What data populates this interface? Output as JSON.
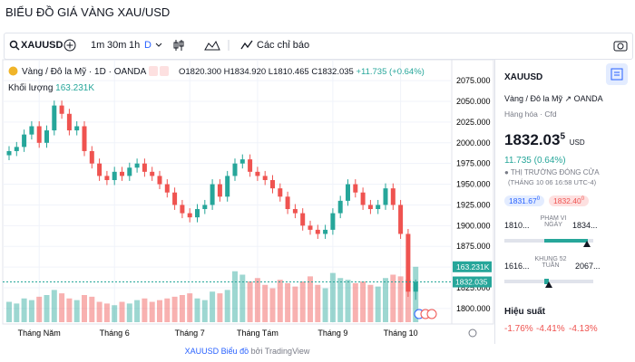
{
  "header": {
    "title": "BIỂU ĐỒ GIÁ VÀNG XAU/USD"
  },
  "toolbar": {
    "symbol": "XAUUSD",
    "intervals": [
      "1m",
      "30m",
      "1h",
      "D"
    ],
    "indicators": "Các chỉ báo"
  },
  "legend": {
    "name": "Vàng / Đô la Mỹ · 1D · OANDA",
    "ohlc": [
      "O1820.300",
      "H1834.920",
      "L1810.465",
      "C1832.035",
      "+11.735 (+0.64%)"
    ],
    "volume_title": "Khối lượng",
    "volume_value": "163.231K"
  },
  "chart_data": {
    "type": "candlestick",
    "categories": [
      null,
      null,
      null,
      null,
      "Tháng Năm",
      null,
      null,
      null,
      null,
      null,
      null,
      null,
      null,
      null,
      "Tháng 6",
      null,
      null,
      null,
      null,
      null,
      null,
      null,
      null,
      null,
      "Tháng 7",
      null,
      null,
      null,
      null,
      null,
      null,
      null,
      null,
      "Tháng Tám",
      null,
      null,
      null,
      null,
      null,
      null,
      null,
      null,
      null,
      "Tháng 9",
      null,
      null,
      null,
      null,
      null,
      null,
      null,
      null,
      "Tháng 10",
      null,
      null
    ],
    "open": [
      1985,
      1990,
      1995,
      2010,
      2020,
      2000,
      2015,
      2045,
      2035,
      2015,
      2020,
      1990,
      1975,
      1960,
      1955,
      1965,
      1960,
      1970,
      1975,
      1965,
      1960,
      1950,
      1940,
      1925,
      1915,
      1910,
      1920,
      1925,
      1950,
      1935,
      1960,
      1975,
      1980,
      1965,
      1960,
      1955,
      1945,
      1935,
      1920,
      1915,
      1900,
      1895,
      1890,
      1895,
      1915,
      1930,
      1950,
      1940,
      1925,
      1920,
      1925,
      1945,
      1925,
      1890,
      1820.3
    ],
    "high": [
      1996,
      2001,
      2016,
      2026,
      2026,
      2021,
      2051,
      2051,
      2041,
      2026,
      2026,
      1996,
      1981,
      1966,
      1971,
      1971,
      1976,
      1981,
      1981,
      1971,
      1966,
      1956,
      1946,
      1931,
      1921,
      1926,
      1931,
      1956,
      1956,
      1966,
      1981,
      1986,
      1986,
      1971,
      1966,
      1961,
      1951,
      1941,
      1926,
      1921,
      1906,
      1901,
      1901,
      1921,
      1936,
      1956,
      1956,
      1946,
      1931,
      1931,
      1951,
      1951,
      1931,
      1896,
      1834.92
    ],
    "low": [
      1979,
      1984,
      1989,
      2004,
      1994,
      1994,
      2009,
      2029,
      2009,
      2009,
      1984,
      1969,
      1954,
      1949,
      1949,
      1954,
      1954,
      1964,
      1959,
      1954,
      1944,
      1934,
      1919,
      1909,
      1904,
      1904,
      1914,
      1919,
      1929,
      1929,
      1954,
      1969,
      1959,
      1954,
      1949,
      1939,
      1929,
      1914,
      1909,
      1894,
      1889,
      1884,
      1884,
      1889,
      1909,
      1924,
      1934,
      1919,
      1914,
      1914,
      1919,
      1919,
      1884,
      1814,
      1810.465
    ],
    "close": [
      1990,
      1995,
      2010,
      2020,
      2000,
      2015,
      2045,
      2035,
      2015,
      2020,
      1990,
      1975,
      1960,
      1955,
      1965,
      1960,
      1970,
      1975,
      1965,
      1960,
      1950,
      1940,
      1925,
      1915,
      1910,
      1920,
      1925,
      1950,
      1935,
      1960,
      1975,
      1980,
      1965,
      1960,
      1955,
      1945,
      1935,
      1920,
      1915,
      1900,
      1895,
      1890,
      1895,
      1915,
      1930,
      1950,
      1940,
      1925,
      1920,
      1925,
      1945,
      1925,
      1890,
      1820.3,
      1832.035
    ],
    "volume": [
      60,
      55,
      70,
      65,
      75,
      80,
      95,
      85,
      70,
      65,
      80,
      75,
      60,
      55,
      50,
      60,
      55,
      65,
      70,
      60,
      65,
      70,
      75,
      80,
      85,
      70,
      65,
      90,
      85,
      95,
      150,
      140,
      120,
      130,
      110,
      100,
      125,
      115,
      105,
      120,
      135,
      110,
      100,
      145,
      130,
      125,
      115,
      120,
      110,
      105,
      130,
      140,
      135,
      125,
      163.231
    ],
    "volume_lim": [
      0,
      200
    ],
    "ylim": [
      1790,
      2085
    ],
    "yticks": [
      {
        "value": 1800,
        "label": "1800.000"
      },
      {
        "value": 1825,
        "label": "1825.000"
      },
      {
        "value": 1850,
        "label": "1850.000"
      },
      {
        "value": 1875,
        "label": "1875.000"
      },
      {
        "value": 1900,
        "label": "1900.000"
      },
      {
        "value": 1925,
        "label": "1925.000"
      },
      {
        "value": 1950,
        "label": "1950.000"
      },
      {
        "value": 1975,
        "label": "1975.000"
      },
      {
        "value": 2000,
        "label": "2000.000"
      },
      {
        "value": 2025,
        "label": "2025.000"
      },
      {
        "value": 2050,
        "label": "2050.000"
      },
      {
        "value": 2075,
        "label": "2075.000"
      }
    ],
    "up_color": "#26a69a",
    "down_color": "#ef5350"
  },
  "sidebar": {
    "symbol": "XAUUSD",
    "name": "Vàng / Đô la Mỹ",
    "exchange": "OANDA",
    "category": "Hàng hóa · Cfd",
    "price": "1832.03",
    "price_sup": "5",
    "currency": "USD",
    "change": "11.735 (0.64%)",
    "status": "THỊ TRƯỜNG ĐÓNG CỬA",
    "time": "(THÁNG 10 06 16:58 UTC-4)",
    "bid": "1831.67",
    "bid_sup": "0",
    "ask": "1832.40",
    "ask_sup": "0",
    "day_low": "1810...",
    "day_label": "PHẠM VI NGÀY",
    "day_high": "1834...",
    "week_low": "1616...",
    "week_label": "KHUNG 52 TUẦN",
    "week_high": "2067...",
    "performance_title": "Hiệu suất",
    "performance": [
      "-1.76%",
      "-4.41%",
      "-4.13%"
    ]
  },
  "footer": {
    "link": "XAUUSD Biểu đồ",
    "by": "bởi TradingView"
  }
}
